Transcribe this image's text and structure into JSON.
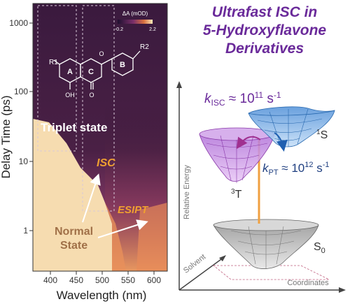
{
  "title": {
    "line1": "Ultrafast ISC in",
    "line2": "5-Hydroxyflavone",
    "line3": "Derivatives",
    "color": "#6a2a9a"
  },
  "heatmap": {
    "y_label": "Delay Time (ps)",
    "x_label": "Wavelength (nm)",
    "y_ticks": [
      "1000",
      "100",
      "10",
      "1"
    ],
    "x_ticks": [
      "400",
      "450",
      "500",
      "550",
      "600"
    ],
    "colorbar": {
      "label": "ΔA (mOD)",
      "min": "-0.2",
      "max": "2.2"
    },
    "annotations": {
      "triplet": "Triplet state",
      "isc": "ISC",
      "esipt": "ESIPT",
      "normal_line1": "Normal",
      "normal_line2": "State"
    },
    "molecule": {
      "r1": "R1",
      "r2": "R2",
      "ring_a": "A",
      "ring_b": "B",
      "ring_c": "C",
      "oh": "OH",
      "o_carbonyl": "O",
      "o_ring": "O"
    },
    "colors": {
      "dark": "#1f1030",
      "mid": "#7a2f6a",
      "hot": "#d8703f",
      "bright": "#fae8b8",
      "accent_text": "#f0a030"
    }
  },
  "energy_diagram": {
    "k_isc_prefix": "k",
    "k_isc_sub": "ISC",
    "k_isc_value": " ≈ 10",
    "k_isc_exp": "11",
    "k_isc_unit": " s",
    "k_isc_unit_exp": "-1",
    "k_pt_prefix": "k",
    "k_pt_sub": "PT",
    "k_pt_value": " ≈ 10",
    "k_pt_exp": "12",
    "k_pt_unit": " s",
    "k_pt_unit_exp": "-1",
    "state_s1_sup": "1",
    "state_s1": "S",
    "state_t3_sup": "3",
    "state_t3": "T",
    "state_s0": "S",
    "state_s0_sub": "0",
    "axis_energy": "Relative Energy",
    "axis_coord": "Coordinates",
    "axis_solvent": "Solvent"
  }
}
